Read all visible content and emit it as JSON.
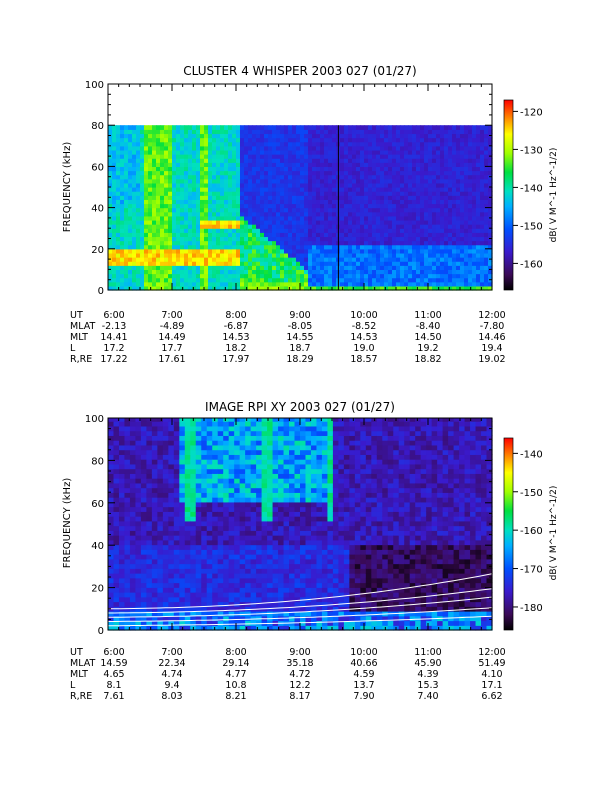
{
  "chart_data": [
    {
      "type": "heatmap",
      "title": "CLUSTER 4 WHISPER 2003 027 (01/27)",
      "ylabel": "FREQUENCY (kHz)",
      "ylim": [
        0,
        100
      ],
      "yticks": [
        0,
        20,
        40,
        60,
        80,
        100
      ],
      "data_ymax": 80,
      "xlim_hours": [
        6,
        12
      ],
      "xticks": [
        "6:00",
        "7:00",
        "8:00",
        "9:00",
        "10:00",
        "11:00",
        "12:00"
      ],
      "colorbar": {
        "label": "dB( V M^-1 Hz^-1/2)",
        "range": [
          -167,
          -117
        ],
        "ticks": [
          -120,
          -130,
          -140,
          -150,
          -160
        ]
      },
      "marker_line_hour": 9.6,
      "ephemeris": {
        "rows": [
          {
            "label": "UT",
            "values": [
              "6:00",
              "7:00",
              "8:00",
              "9:00",
              "10:00",
              "11:00",
              "12:00"
            ]
          },
          {
            "label": "MLAT",
            "values": [
              "-2.13",
              "-4.89",
              "-6.87",
              "-8.05",
              "-8.52",
              "-8.40",
              "-7.80"
            ]
          },
          {
            "label": "MLT",
            "values": [
              "14.41",
              "14.49",
              "14.53",
              "14.55",
              "14.53",
              "14.50",
              "14.46"
            ]
          },
          {
            "label": "L",
            "values": [
              "17.2",
              "17.7",
              "18.2",
              "18.7",
              "19.0",
              "19.2",
              "19.4"
            ]
          },
          {
            "label": "R,RE",
            "values": [
              "17.22",
              "17.61",
              "17.97",
              "18.29",
              "18.57",
              "18.82",
              "19.02"
            ]
          }
        ]
      }
    },
    {
      "type": "heatmap",
      "title": "IMAGE RPI XY 2003 027 (01/27)",
      "ylabel": "FREQUENCY (kHz)",
      "ylim": [
        0,
        100
      ],
      "yticks": [
        0,
        20,
        40,
        60,
        80,
        100
      ],
      "data_ymax": 103,
      "xlim_hours": [
        6,
        12
      ],
      "xticks": [
        "6:00",
        "7:00",
        "8:00",
        "9:00",
        "10:00",
        "11:00",
        "12:00"
      ],
      "colorbar": {
        "label": "dB( V M^-1 Hz^-1/2)",
        "range": [
          -186,
          -136
        ],
        "ticks": [
          -140,
          -150,
          -160,
          -170,
          -180
        ]
      },
      "ephemeris": {
        "rows": [
          {
            "label": "UT",
            "values": [
              "6:00",
              "7:00",
              "8:00",
              "9:00",
              "10:00",
              "11:00",
              "12:00"
            ]
          },
          {
            "label": "MLAT",
            "values": [
              "14.59",
              "22.34",
              "29.14",
              "35.18",
              "40.66",
              "45.90",
              "51.49"
            ]
          },
          {
            "label": "MLT",
            "values": [
              "4.65",
              "4.74",
              "4.77",
              "4.72",
              "4.59",
              "4.39",
              "4.10"
            ]
          },
          {
            "label": "L",
            "values": [
              "8.1",
              "9.4",
              "10.8",
              "12.2",
              "13.7",
              "15.3",
              "17.1"
            ]
          },
          {
            "label": "R,RE",
            "values": [
              "7.61",
              "8.03",
              "8.21",
              "8.17",
              "7.90",
              "7.40",
              "6.62"
            ]
          }
        ]
      }
    }
  ]
}
